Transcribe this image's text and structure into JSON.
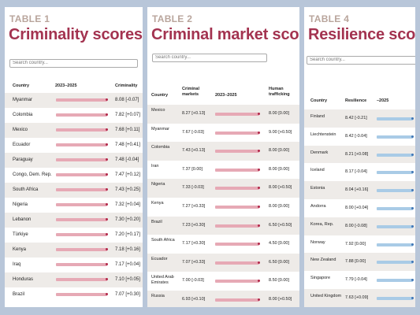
{
  "table1": {
    "tag": "TABLE 1",
    "title": "Criminality scores",
    "search_placeholder": "Search country...",
    "headers": [
      "Country",
      "2023–2025",
      "Criminality"
    ],
    "rows": [
      {
        "country": "Myanmar",
        "score": "8.08 [-0.07]"
      },
      {
        "country": "Colombia",
        "score": "7.82 [+0.07]"
      },
      {
        "country": "Mexico",
        "score": "7.68 [+0.11]"
      },
      {
        "country": "Ecuador",
        "score": "7.48 [+0.41]"
      },
      {
        "country": "Paraguay",
        "score": "7.48 [-0.04]"
      },
      {
        "country": "Congo, Dem. Rep.",
        "score": "7.47 [+0.12]"
      },
      {
        "country": "South Africa",
        "score": "7.43 [+0.25]"
      },
      {
        "country": "Nigeria",
        "score": "7.32 [+0.04]"
      },
      {
        "country": "Lebanon",
        "score": "7.30 [+0.20]"
      },
      {
        "country": "Türkiye",
        "score": "7.20 [+0.17]"
      },
      {
        "country": "Kenya",
        "score": "7.18 [+0.16]"
      },
      {
        "country": "Iraq",
        "score": "7.17 [+0.04]"
      },
      {
        "country": "Honduras",
        "score": "7.10 [+0.05]"
      },
      {
        "country": "Brazil",
        "score": "7.07 [+0.30]"
      }
    ]
  },
  "table2": {
    "tag": "TABLE 2",
    "title": "Criminal market scores",
    "search_placeholder": "Search country...",
    "headers": [
      "Country",
      "Criminal markets",
      "2023–2025",
      "Human trafficking"
    ],
    "rows": [
      {
        "country": "Mexico",
        "markets": "8.27 [+0.13]",
        "trafficking": "8.00 [0.00]"
      },
      {
        "country": "Myanmar",
        "markets": "7.67 [-0.03]",
        "trafficking": "9.00 [+0.50]"
      },
      {
        "country": "Colombia",
        "markets": "7.43 [+0.13]",
        "trafficking": "8.00 [0.00]"
      },
      {
        "country": "Iran",
        "markets": "7.37 [0.00]",
        "trafficking": "8.00 [0.00]"
      },
      {
        "country": "Nigeria",
        "markets": "7.33 [-0.03]",
        "trafficking": "8.00 [+0.50]"
      },
      {
        "country": "Kenya",
        "markets": "7.27 [+0.33]",
        "trafficking": "8.00 [0.00]"
      },
      {
        "country": "Brazil",
        "markets": "7.23 [+0.30]",
        "trafficking": "6.50 [+0.50]"
      },
      {
        "country": "South Africa",
        "markets": "7.17 [+0.30]",
        "trafficking": "4.50 [0.00]"
      },
      {
        "country": "Ecuador",
        "markets": "7.07 [+0.33]",
        "trafficking": "6.50 [0.00]"
      },
      {
        "country": "United Arab Emirates",
        "markets": "7.00 [-0.03]",
        "trafficking": "8.50 [0.00]"
      },
      {
        "country": "Russia",
        "markets": "6.93 [+0.10]",
        "trafficking": "8.00 [+0.50]"
      }
    ]
  },
  "table4": {
    "tag": "TABLE 4",
    "title": "Resilience scores",
    "search_placeholder": "Search country...",
    "headers": [
      "Country",
      "Resilience",
      "–2025"
    ],
    "rows": [
      {
        "country": "Finland",
        "score": "8.42 [-0.21]"
      },
      {
        "country": "Liechtenstein",
        "score": "8.42 [-0.04]"
      },
      {
        "country": "Denmark",
        "score": "8.21 [+0.08]"
      },
      {
        "country": "Iceland",
        "score": "8.17 [-0.04]"
      },
      {
        "country": "Estonia",
        "score": "8.04 [+0.16]"
      },
      {
        "country": "Andorra",
        "score": "8.00 [+0.04]"
      },
      {
        "country": "Korea, Rep.",
        "score": "8.00 [-0.08]"
      },
      {
        "country": "Norway",
        "score": "7.92 [0.00]"
      },
      {
        "country": "New Zealand",
        "score": "7.88 [0.00]"
      },
      {
        "country": "Singapore",
        "score": "7.79 [-0.04]"
      },
      {
        "country": "United Kingdom",
        "score": "7.63 [+0.09]"
      }
    ]
  },
  "colors": {
    "title": "#a33350",
    "tag": "#b9a59c",
    "bar_red": "#e6a9b5",
    "dot_red": "#b1284a",
    "bar_blue": "#a9cbe6",
    "dot_blue": "#3f76b6",
    "background": "#b8c6d9"
  }
}
